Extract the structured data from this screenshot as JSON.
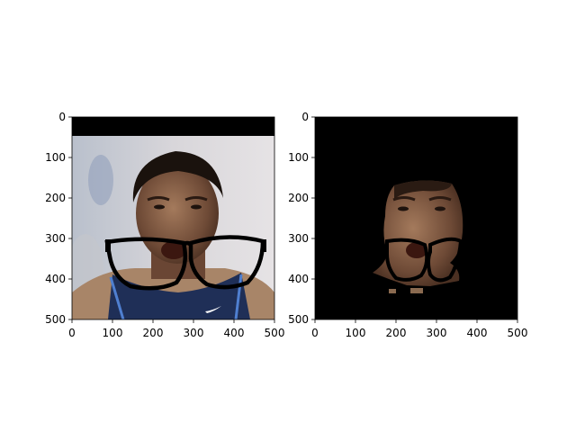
{
  "figure": {
    "background": "#ffffff",
    "panels": [
      {
        "name": "original-with-glasses",
        "content": "face photo with black eyeglasses overlay placed over mouth area; black band across top rows",
        "xlim": [
          0,
          500
        ],
        "ylim": [
          500,
          0
        ],
        "xticks": [
          "0",
          "100",
          "200",
          "300",
          "400",
          "500"
        ],
        "yticks": [
          "0",
          "100",
          "200",
          "300",
          "400",
          "500"
        ]
      },
      {
        "name": "segmented-face-with-glasses",
        "content": "same face masked to skin region on black background with glasses overlay",
        "xlim": [
          0,
          500
        ],
        "ylim": [
          500,
          0
        ],
        "xticks": [
          "0",
          "100",
          "200",
          "300",
          "400",
          "500"
        ],
        "yticks": [
          "0",
          "100",
          "200",
          "300",
          "400",
          "500"
        ]
      }
    ]
  }
}
